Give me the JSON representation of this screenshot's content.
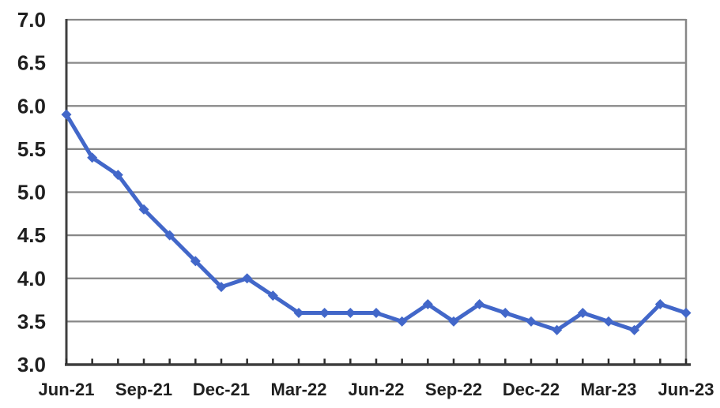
{
  "chart_data": {
    "type": "line",
    "x": [
      "Jun-21",
      "Jul-21",
      "Aug-21",
      "Sep-21",
      "Oct-21",
      "Nov-21",
      "Dec-21",
      "Jan-22",
      "Feb-22",
      "Mar-22",
      "Apr-22",
      "May-22",
      "Jun-22",
      "Jul-22",
      "Aug-22",
      "Sep-22",
      "Oct-22",
      "Nov-22",
      "Dec-22",
      "Jan-23",
      "Feb-23",
      "Mar-23",
      "Apr-23",
      "May-23",
      "Jun-23"
    ],
    "values": [
      5.9,
      5.4,
      5.2,
      4.8,
      4.5,
      4.2,
      3.9,
      4.0,
      3.8,
      3.6,
      3.6,
      3.6,
      3.6,
      3.5,
      3.7,
      3.5,
      3.7,
      3.6,
      3.5,
      3.4,
      3.6,
      3.5,
      3.4,
      3.7,
      3.6
    ],
    "title": "",
    "xlabel": "",
    "ylabel": "",
    "ylim": [
      3.0,
      7.0
    ],
    "y_tick_step": 0.5,
    "y_tick_labels": [
      "7.0",
      "6.5",
      "6.0",
      "5.5",
      "5.0",
      "4.5",
      "4.0",
      "3.5",
      "3.0"
    ],
    "x_tick_labels": [
      "Jun-21",
      "Sep-21",
      "Dec-21",
      "Mar-22",
      "Jun-22",
      "Sep-22",
      "Dec-22",
      "Mar-23",
      "Jun-23"
    ],
    "x_tick_every": 3,
    "grid": "horizontal",
    "legend": "none",
    "marker": "diamond",
    "line_color": "#4267C9",
    "gridline_color": "#878787",
    "axis_color": "#3f3f3f",
    "tick_color": "#2b2b2b",
    "text_color": "#1f1f1f",
    "background": "#ffffff"
  }
}
